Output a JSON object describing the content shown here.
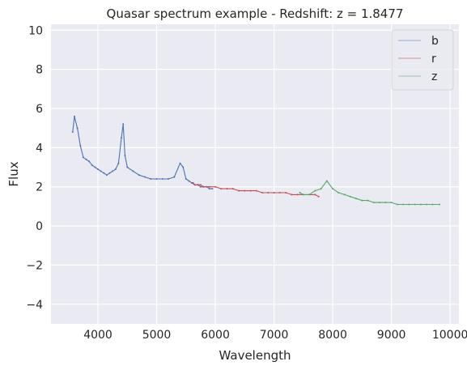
{
  "chart_data": {
    "type": "line",
    "title": "Quasar spectrum example - Redshift: z = 1.8477",
    "xlabel": "Wavelength",
    "ylabel": "Flux",
    "xlim": [
      3200,
      10150
    ],
    "ylim": [
      -5,
      10.3
    ],
    "xticks": [
      4000,
      5000,
      6000,
      7000,
      8000,
      9000,
      10000
    ],
    "xtick_labels": [
      "4000",
      "5000",
      "6000",
      "7000",
      "8000",
      "9000",
      "10000"
    ],
    "yticks": [
      -4,
      -2,
      0,
      2,
      4,
      6,
      8,
      10
    ],
    "ytick_labels": [
      "−4",
      "−2",
      "0",
      "2",
      "4",
      "6",
      "8",
      "10"
    ],
    "grid": true,
    "legend_position": "top-right",
    "series": [
      {
        "name": "b",
        "color": "#4c72b0",
        "x": [
          3570,
          3600,
          3650,
          3700,
          3750,
          3800,
          3850,
          3900,
          3950,
          4000,
          4050,
          4100,
          4150,
          4200,
          4250,
          4300,
          4350,
          4400,
          4430,
          4460,
          4500,
          4600,
          4700,
          4800,
          4900,
          5000,
          5100,
          5200,
          5300,
          5400,
          5450,
          5500,
          5550,
          5600,
          5650,
          5700,
          5750,
          5800,
          5850,
          5900,
          5950
        ],
        "y": [
          4.8,
          5.6,
          5.0,
          4.1,
          3.5,
          3.4,
          3.3,
          3.1,
          3.0,
          2.9,
          2.8,
          2.7,
          2.6,
          2.7,
          2.8,
          2.9,
          3.2,
          4.5,
          5.2,
          3.6,
          3.0,
          2.8,
          2.6,
          2.5,
          2.4,
          2.4,
          2.4,
          2.4,
          2.5,
          3.2,
          3.0,
          2.4,
          2.3,
          2.2,
          2.1,
          2.1,
          2.0,
          2.0,
          2.0,
          1.9,
          1.9
        ]
      },
      {
        "name": "r",
        "color": "#c44e52",
        "x": [
          5620,
          5650,
          5700,
          5750,
          5800,
          5900,
          6000,
          6100,
          6200,
          6300,
          6400,
          6500,
          6600,
          6700,
          6800,
          6900,
          7000,
          7100,
          7200,
          7300,
          7400,
          7500,
          7600,
          7700,
          7760
        ],
        "y": [
          2.2,
          2.1,
          2.1,
          2.1,
          2.0,
          2.0,
          2.0,
          1.9,
          1.9,
          1.9,
          1.8,
          1.8,
          1.8,
          1.8,
          1.7,
          1.7,
          1.7,
          1.7,
          1.7,
          1.6,
          1.6,
          1.6,
          1.6,
          1.6,
          1.5
        ]
      },
      {
        "name": "z",
        "color": "#55a868",
        "x": [
          7440,
          7500,
          7600,
          7700,
          7800,
          7900,
          8000,
          8100,
          8200,
          8300,
          8400,
          8500,
          8600,
          8700,
          8800,
          8900,
          9000,
          9100,
          9200,
          9300,
          9400,
          9500,
          9600,
          9700,
          9820
        ],
        "y": [
          1.7,
          1.6,
          1.6,
          1.8,
          1.9,
          2.3,
          1.9,
          1.7,
          1.6,
          1.5,
          1.4,
          1.3,
          1.3,
          1.2,
          1.2,
          1.2,
          1.2,
          1.1,
          1.1,
          1.1,
          1.1,
          1.1,
          1.1,
          1.1,
          1.1
        ]
      }
    ]
  }
}
